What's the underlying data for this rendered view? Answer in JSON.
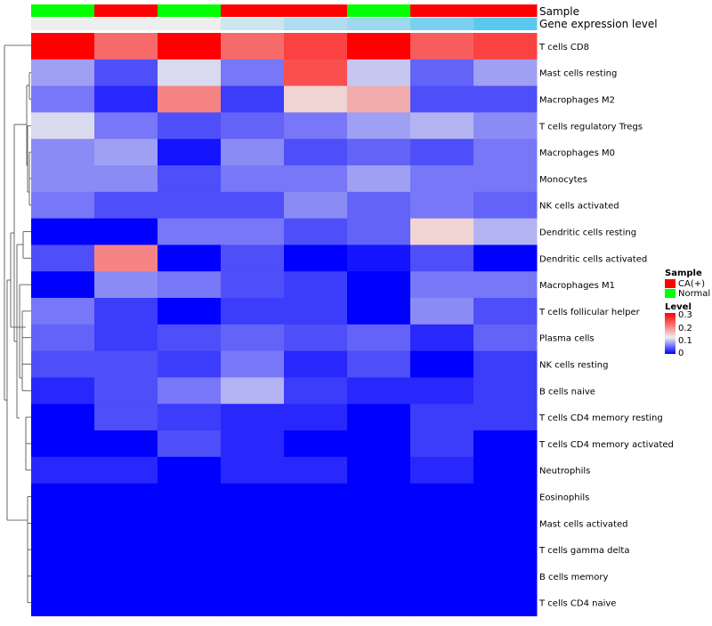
{
  "chart_data": {
    "type": "heatmap",
    "annotation_titles": {
      "sample": "Sample",
      "expression": "Gene expression level"
    },
    "samples": [
      "Normal",
      "CA(+)",
      "Normal",
      "CA(+)",
      "CA(+)",
      "Normal",
      "CA(+)",
      "CA(+)"
    ],
    "expression_level": [
      0.12,
      0.12,
      0.12,
      0.1,
      0.08,
      0.07,
      0.05,
      0.03
    ],
    "rows": [
      "T cells CD8",
      "Mast cells resting",
      "Macrophages M2",
      "T cells regulatory  Tregs",
      "Macrophages M0",
      "Monocytes",
      "NK cells activated",
      "Dendritic cells resting",
      "Dendritic cells activated",
      "Macrophages M1",
      "T cells follicular helper",
      "Plasma cells",
      "NK cells resting",
      "B cells naive",
      "T cells CD4 memory resting",
      "T cells CD4 memory activated",
      "Neutrophils",
      "Eosinophils",
      "Mast cells activated",
      "T cells gamma delta",
      "B cells memory",
      "T cells CD4 naive"
    ],
    "values": [
      [
        0.3,
        0.22,
        0.3,
        0.22,
        0.25,
        0.3,
        0.23,
        0.25
      ],
      [
        0.08,
        0.04,
        0.11,
        0.06,
        0.24,
        0.1,
        0.05,
        0.08
      ],
      [
        0.06,
        0.02,
        0.2,
        0.03,
        0.14,
        0.17,
        0.04,
        0.04
      ],
      [
        0.11,
        0.06,
        0.04,
        0.05,
        0.06,
        0.08,
        0.09,
        0.07
      ],
      [
        0.07,
        0.08,
        0.01,
        0.07,
        0.04,
        0.05,
        0.04,
        0.06
      ],
      [
        0.07,
        0.07,
        0.04,
        0.06,
        0.06,
        0.08,
        0.06,
        0.06
      ],
      [
        0.06,
        0.04,
        0.04,
        0.04,
        0.07,
        0.05,
        0.06,
        0.05
      ],
      [
        0.0,
        0.0,
        0.06,
        0.06,
        0.04,
        0.05,
        0.14,
        0.09
      ],
      [
        0.04,
        0.2,
        0.0,
        0.04,
        0.0,
        0.01,
        0.04,
        0.0
      ],
      [
        0.0,
        0.07,
        0.06,
        0.04,
        0.03,
        0.0,
        0.06,
        0.06
      ],
      [
        0.06,
        0.03,
        0.0,
        0.03,
        0.03,
        0.0,
        0.07,
        0.04
      ],
      [
        0.05,
        0.03,
        0.04,
        0.05,
        0.04,
        0.05,
        0.02,
        0.05
      ],
      [
        0.04,
        0.04,
        0.03,
        0.06,
        0.02,
        0.04,
        0.0,
        0.03
      ],
      [
        0.02,
        0.04,
        0.06,
        0.09,
        0.03,
        0.02,
        0.02,
        0.03
      ],
      [
        0.0,
        0.04,
        0.03,
        0.02,
        0.02,
        0.0,
        0.03,
        0.03
      ],
      [
        0.0,
        0.0,
        0.04,
        0.02,
        0.0,
        0.0,
        0.03,
        0.0
      ],
      [
        0.02,
        0.02,
        0.0,
        0.02,
        0.02,
        0.0,
        0.02,
        0.0
      ],
      [
        0.0,
        0.0,
        0.0,
        0.0,
        0.0,
        0.0,
        0.0,
        0.0
      ],
      [
        0.0,
        0.0,
        0.0,
        0.0,
        0.0,
        0.0,
        0.0,
        0.0
      ],
      [
        0.0,
        0.0,
        0.0,
        0.0,
        0.0,
        0.0,
        0.0,
        0.0
      ],
      [
        0.0,
        0.0,
        0.0,
        0.0,
        0.0,
        0.0,
        0.0,
        0.0
      ],
      [
        0.0,
        0.0,
        0.0,
        0.0,
        0.0,
        0.0,
        0.0,
        0.0
      ]
    ],
    "color_scale": {
      "min": 0,
      "max": 0.3,
      "low": "#0000ff",
      "mid": "#eeeeee",
      "high": "#ff0000",
      "mid_value": 0.12
    },
    "expression_color_scale": {
      "min": 0.03,
      "max": 0.12,
      "low": "#5bc8ef",
      "high": "#eeeeee"
    },
    "legend": {
      "sample_title": "Sample",
      "sample_entries": [
        {
          "label": "CA(+)",
          "color": "#ff0000"
        },
        {
          "label": "Normal",
          "color": "#00ff00"
        }
      ],
      "level_title": "Level",
      "level_ticks": [
        "0.3",
        "0.2",
        "0.1",
        "0"
      ]
    }
  }
}
